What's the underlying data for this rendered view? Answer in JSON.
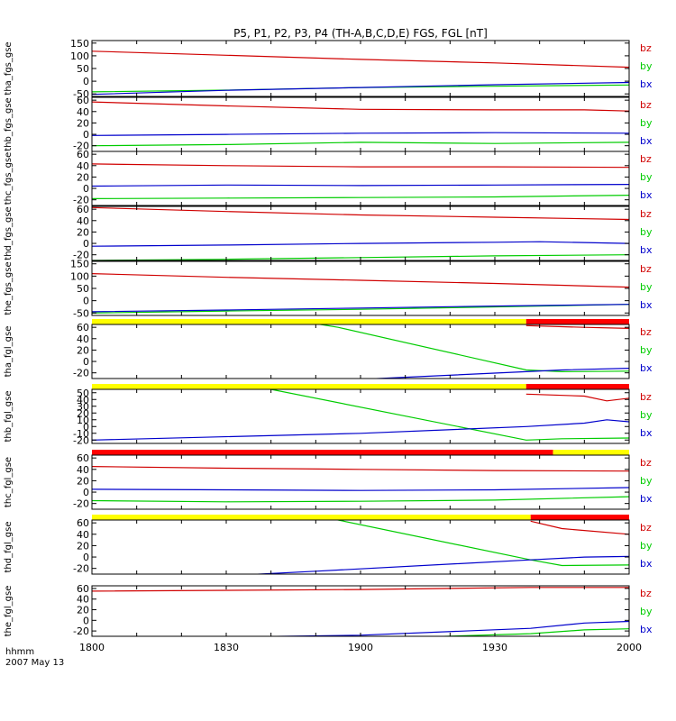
{
  "title": "P5, P1, P2, P3, P4 (TH-A,B,C,D,E) FGS, FGL [nT]",
  "time_axis": {
    "label_line1": "hhmm",
    "label_line2": "2007 May 13",
    "ticks": [
      "1800",
      "1830",
      "1900",
      "1930",
      "2000"
    ]
  },
  "colors": {
    "bz": "#d00000",
    "by": "#00cc00",
    "bx": "#0000cc",
    "flag_yellow": "#ffff00",
    "flag_red": "#ff0000",
    "axis": "#000000"
  },
  "chart_data": {
    "type": "line",
    "x_units": "hhmm",
    "x_range": [
      "18:00",
      "20:00"
    ],
    "panels": [
      {
        "ylabel": "tha_fgs_gse",
        "ylim": [
          -60,
          160
        ],
        "yticks": [
          "150",
          "100",
          "50",
          "0",
          "-50"
        ],
        "legend": [
          "bz",
          "by",
          "bx"
        ],
        "series": [
          {
            "name": "bz",
            "x": [
              0,
              30,
              60,
              90,
              120
            ],
            "y": [
              118,
              102,
              86,
              72,
              55
            ]
          },
          {
            "name": "by",
            "x": [
              0,
              30,
              60,
              90,
              120
            ],
            "y": [
              -42,
              -35,
              -25,
              -20,
              -15
            ]
          },
          {
            "name": "bx",
            "x": [
              0,
              30,
              60,
              90,
              120
            ],
            "y": [
              -52,
              -36,
              -25,
              -14,
              -5
            ]
          }
        ]
      },
      {
        "ylabel": "thb_fgs_gse",
        "ylim": [
          -30,
          65
        ],
        "yticks": [
          "60",
          "40",
          "20",
          "0",
          "-20"
        ],
        "legend": [
          "bz",
          "by",
          "bx"
        ],
        "series": [
          {
            "name": "bz",
            "x": [
              0,
              30,
              60,
              90,
              110,
              120
            ],
            "y": [
              57,
              50,
              44,
              43,
              43,
              41
            ]
          },
          {
            "name": "by",
            "x": [
              0,
              30,
              60,
              90,
              120
            ],
            "y": [
              -20,
              -18,
              -14,
              -16,
              -14
            ]
          },
          {
            "name": "bx",
            "x": [
              0,
              30,
              60,
              90,
              120
            ],
            "y": [
              -2,
              0,
              2,
              3,
              2
            ]
          }
        ]
      },
      {
        "ylabel": "thc_fgs_gse",
        "ylim": [
          -30,
          65
        ],
        "yticks": [
          "60",
          "40",
          "20",
          "0",
          "-20"
        ],
        "legend": [
          "bz",
          "by",
          "bx"
        ],
        "series": [
          {
            "name": "bz",
            "x": [
              0,
              30,
              60,
              90,
              120
            ],
            "y": [
              43,
              40,
              38,
              38,
              37
            ]
          },
          {
            "name": "by",
            "x": [
              0,
              30,
              60,
              90,
              120
            ],
            "y": [
              -18,
              -17,
              -16,
              -15,
              -12
            ]
          },
          {
            "name": "bx",
            "x": [
              0,
              30,
              60,
              90,
              120
            ],
            "y": [
              4,
              6,
              5,
              6,
              7
            ]
          }
        ]
      },
      {
        "ylabel": "thd_fgs_gse",
        "ylim": [
          -30,
          65
        ],
        "yticks": [
          "60",
          "40",
          "20",
          "0",
          "-20"
        ],
        "legend": [
          "bz",
          "by",
          "bx"
        ],
        "series": [
          {
            "name": "bz",
            "x": [
              0,
              30,
              60,
              90,
              120
            ],
            "y": [
              63,
              56,
              50,
              46,
              42
            ]
          },
          {
            "name": "by",
            "x": [
              0,
              30,
              60,
              90,
              120
            ],
            "y": [
              -30,
              -28,
              -25,
              -22,
              -20
            ]
          },
          {
            "name": "bx",
            "x": [
              0,
              30,
              60,
              90,
              100,
              120
            ],
            "y": [
              -5,
              -3,
              0,
              2,
              3,
              0
            ]
          }
        ]
      },
      {
        "ylabel": "the_fgs_gse",
        "ylim": [
          -60,
          160
        ],
        "yticks": [
          "150",
          "100",
          "50",
          "0",
          "-50"
        ],
        "legend": [
          "bz",
          "by",
          "bx"
        ],
        "series": [
          {
            "name": "bz",
            "x": [
              0,
              30,
              60,
              90,
              120
            ],
            "y": [
              110,
              95,
              83,
              70,
              55
            ]
          },
          {
            "name": "by",
            "x": [
              0,
              30,
              60,
              90,
              120
            ],
            "y": [
              -50,
              -42,
              -35,
              -25,
              -15
            ]
          },
          {
            "name": "bx",
            "x": [
              0,
              30,
              60,
              90,
              120
            ],
            "y": [
              -45,
              -38,
              -30,
              -22,
              -15
            ]
          }
        ]
      },
      {
        "ylabel": "tha_fgl_gse",
        "ylim": [
          -30,
          65
        ],
        "yticks": [
          "60",
          "40",
          "20",
          "0",
          "-20"
        ],
        "legend": [
          "bz",
          "by",
          "bx"
        ],
        "flag": [
          {
            "color": "yellow",
            "from": 0,
            "to": 97
          },
          {
            "color": "red",
            "from": 97,
            "to": 120
          }
        ],
        "series": [
          {
            "name": "bz",
            "x": [
              97,
              110,
              120
            ],
            "y": [
              63,
              60,
              58
            ]
          },
          {
            "name": "by",
            "x": [
              0,
              55,
              97,
              105,
              120
            ],
            "y": [
              130,
              60,
              -15,
              -18,
              -17
            ]
          },
          {
            "name": "bx",
            "x": [
              0,
              50,
              97,
              105,
              120
            ],
            "y": [
              -55,
              -35,
              -18,
              -15,
              -12
            ]
          }
        ]
      },
      {
        "ylabel": "thb_fgl_gse",
        "ylim": [
          -25,
          55
        ],
        "yticks": [
          "50",
          "40",
          "30",
          "20",
          "10",
          "0",
          "-10",
          "-20"
        ],
        "legend": [
          "bz",
          "by",
          "bx"
        ],
        "flag": [
          {
            "color": "yellow",
            "from": 0,
            "to": 97
          },
          {
            "color": "red",
            "from": 97,
            "to": 120
          }
        ],
        "series": [
          {
            "name": "bz",
            "x": [
              97,
              110,
              115,
              120
            ],
            "y": [
              48,
              45,
              38,
              42
            ]
          },
          {
            "name": "by",
            "x": [
              0,
              40,
              97,
              105,
              120
            ],
            "y": [
              85,
              55,
              -20,
              -18,
              -17
            ]
          },
          {
            "name": "bx",
            "x": [
              0,
              60,
              97,
              110,
              115,
              120
            ],
            "y": [
              -20,
              -10,
              0,
              5,
              10,
              7
            ]
          }
        ]
      },
      {
        "ylabel": "thc_fgl_gse",
        "ylim": [
          -30,
          65
        ],
        "yticks": [
          "60",
          "40",
          "20",
          "0",
          "-20"
        ],
        "legend": [
          "bz",
          "by",
          "bx"
        ],
        "flag": [
          {
            "color": "red",
            "from": 0,
            "to": 103
          },
          {
            "color": "yellow",
            "from": 103,
            "to": 120
          }
        ],
        "series": [
          {
            "name": "bz",
            "x": [
              0,
              30,
              60,
              90,
              120
            ],
            "y": [
              45,
              42,
              40,
              38,
              37
            ]
          },
          {
            "name": "by",
            "x": [
              0,
              30,
              60,
              90,
              120
            ],
            "y": [
              -15,
              -17,
              -16,
              -14,
              -8
            ]
          },
          {
            "name": "bx",
            "x": [
              0,
              30,
              60,
              90,
              120
            ],
            "y": [
              5,
              4,
              3,
              4,
              8
            ]
          }
        ]
      },
      {
        "ylabel": "thd_fgl_gse",
        "ylim": [
          -30,
          65
        ],
        "yticks": [
          "60",
          "40",
          "20",
          "0",
          "-20"
        ],
        "legend": [
          "bz",
          "by",
          "bx"
        ],
        "flag": [
          {
            "color": "yellow",
            "from": 0,
            "to": 98
          },
          {
            "color": "red",
            "from": 98,
            "to": 120
          }
        ],
        "series": [
          {
            "name": "bz",
            "x": [
              98,
              105,
              120
            ],
            "y": [
              63,
              50,
              40
            ]
          },
          {
            "name": "by",
            "x": [
              0,
              55,
              98,
              105,
              120
            ],
            "y": [
              130,
              65,
              -5,
              -15,
              -14
            ]
          },
          {
            "name": "bx",
            "x": [
              0,
              50,
              98,
              110,
              120
            ],
            "y": [
              -45,
              -25,
              -5,
              0,
              1
            ]
          }
        ]
      },
      {
        "ylabel": "the_fgl_gse",
        "ylim": [
          -30,
          65
        ],
        "yticks": [
          "60",
          "40",
          "20",
          "0",
          "-20"
        ],
        "legend": [
          "bz",
          "by",
          "bx"
        ],
        "series": [
          {
            "name": "bz",
            "x": [
              0,
              60,
              98,
              120
            ],
            "y": [
              55,
              58,
              62,
              62
            ]
          },
          {
            "name": "by",
            "x": [
              0,
              60,
              98,
              110,
              120
            ],
            "y": [
              -45,
              -35,
              -25,
              -18,
              -16
            ]
          },
          {
            "name": "bx",
            "x": [
              0,
              60,
              98,
              110,
              120
            ],
            "y": [
              -35,
              -28,
              -15,
              -5,
              -2
            ]
          }
        ]
      }
    ]
  }
}
